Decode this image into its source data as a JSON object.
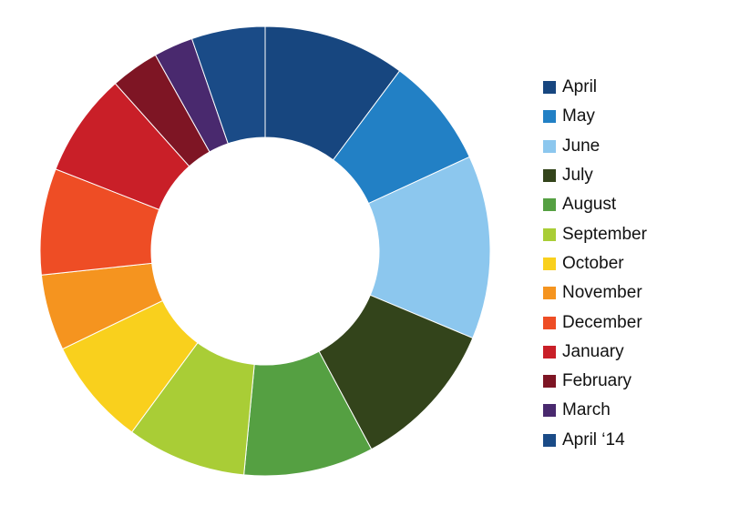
{
  "chart_data": {
    "type": "pie",
    "donut": true,
    "title": "",
    "legend_position": "right",
    "categories": [
      "April",
      "May",
      "June",
      "July",
      "August",
      "September",
      "October",
      "November",
      "December",
      "January",
      "February",
      "March",
      "April ‘14"
    ],
    "values": [
      10.8,
      8.4,
      14.0,
      11.5,
      9.9,
      9.1,
      8.2,
      5.8,
      8.1,
      7.9,
      3.7,
      3.0,
      5.6
    ],
    "colors": [
      "#17467f",
      "#2280c5",
      "#8cc7ee",
      "#33441b",
      "#55a042",
      "#a9cd36",
      "#f9d01d",
      "#f5941f",
      "#ee4d25",
      "#c91f28",
      "#7e1524",
      "#49296e",
      "#1a4b87"
    ]
  }
}
